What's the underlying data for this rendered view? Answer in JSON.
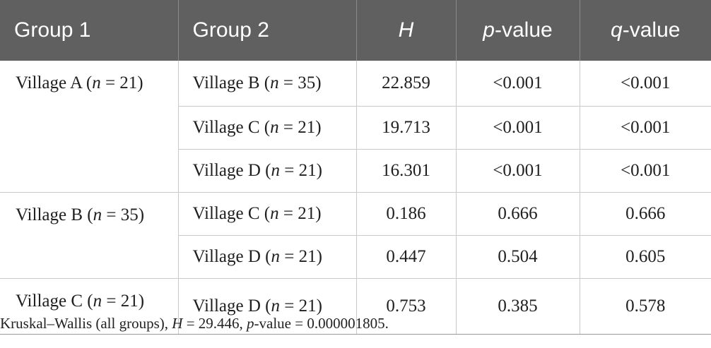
{
  "headers": {
    "group1": "Group 1",
    "group2": "Group 2",
    "h": "H",
    "p_italic": "p",
    "p_rest": "-value",
    "q_italic": "q",
    "q_rest": "-value"
  },
  "rows": [
    {
      "group1_prefix": "Village A (",
      "group1_n": "n",
      "group1_suffix": " = 21)",
      "group2_prefix": "Village B (",
      "group2_n": "n",
      "group2_suffix": " = 35)",
      "h": "22.859",
      "p": "<0.001",
      "q": "<0.001"
    },
    {
      "group2_prefix": "Village C (",
      "group2_n": "n",
      "group2_suffix": " = 21)",
      "h": "19.713",
      "p": "<0.001",
      "q": "<0.001"
    },
    {
      "group2_prefix": "Village D (",
      "group2_n": "n",
      "group2_suffix": " = 21)",
      "h": "16.301",
      "p": "<0.001",
      "q": "<0.001"
    },
    {
      "group1_prefix": "Village B (",
      "group1_n": "n",
      "group1_suffix": " = 35)",
      "group2_prefix": "Village C (",
      "group2_n": "n",
      "group2_suffix": " = 21)",
      "h": "0.186",
      "p": "0.666",
      "q": "0.666"
    },
    {
      "group2_prefix": "Village D (",
      "group2_n": "n",
      "group2_suffix": " = 21)",
      "h": "0.447",
      "p": "0.504",
      "q": "0.605"
    },
    {
      "group1_prefix": "Village C (",
      "group1_n": "n",
      "group1_suffix": " = 21)",
      "group2_prefix": "Village D (",
      "group2_n": "n",
      "group2_suffix": " = 21)",
      "h": "0.753",
      "p": "0.385",
      "q": "0.578"
    }
  ],
  "footnote": {
    "prefix": "Kruskal–Wallis (all groups), ",
    "h_italic": "H",
    "h_value": " = 29.446, ",
    "p_italic": "p",
    "p_value": "-value = 0.000001805."
  }
}
